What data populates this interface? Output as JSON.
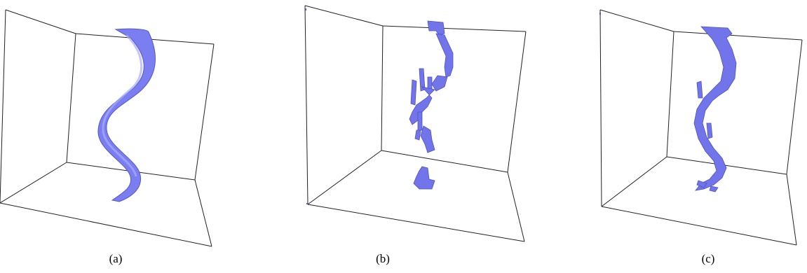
{
  "figure": {
    "panels": [
      {
        "label": "(a)"
      },
      {
        "label": "(b)"
      },
      {
        "label": "(c)"
      }
    ],
    "colors": {
      "surface": "#7a7ef0",
      "edge": "#5558c8",
      "box": "#222222"
    }
  }
}
